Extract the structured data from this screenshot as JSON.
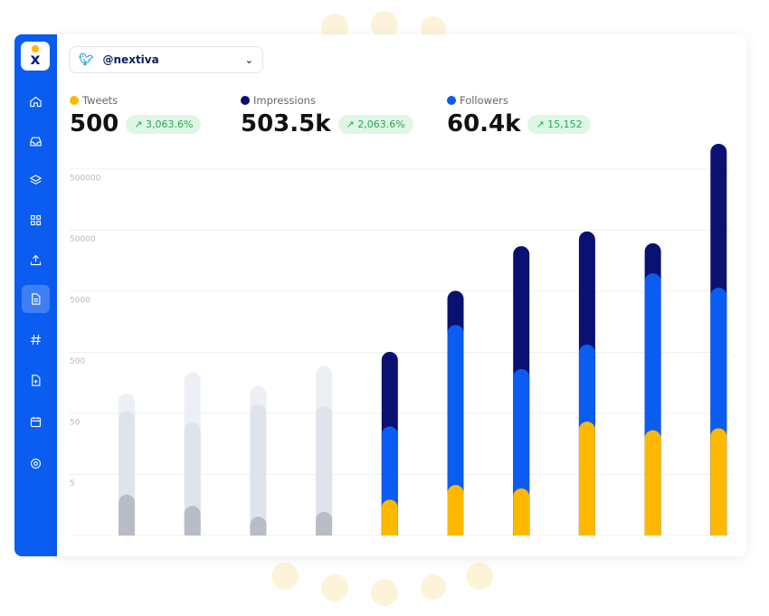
{
  "account": {
    "platform_icon": "twitter-icon",
    "handle": "@nextiva"
  },
  "sidebar": {
    "logo": "x",
    "items": [
      {
        "icon": "home-icon"
      },
      {
        "icon": "inbox-icon"
      },
      {
        "icon": "layers-icon"
      },
      {
        "icon": "grid-icon"
      },
      {
        "icon": "upload-icon"
      },
      {
        "icon": "document-icon",
        "active": true
      },
      {
        "icon": "hashtag-icon"
      },
      {
        "icon": "file-plus-icon"
      },
      {
        "icon": "calendar-icon"
      },
      {
        "icon": "settings-icon"
      }
    ]
  },
  "stats": [
    {
      "label": "Tweets",
      "value": "500",
      "change": "3,063.6%",
      "color": "#ffb800"
    },
    {
      "label": "Impressions",
      "value": "503.5k",
      "change": "2,063.6%",
      "color": "#0a1172"
    },
    {
      "label": "Followers",
      "value": "60.4k",
      "change": "15,152",
      "color": "#0b5cf0"
    }
  ],
  "colors": {
    "accent": "#0b5cf0",
    "tweets": "#ffb800",
    "followers": "#0b5cf0",
    "impressions": "#0a1172",
    "inactive": [
      "#eceff4",
      "#dfe3ea",
      "#b7bcc6"
    ]
  },
  "chart_data": {
    "type": "bar",
    "scale": "log",
    "grid": true,
    "yticks": [
      "5",
      "50",
      "500",
      "5000",
      "50000",
      "500000"
    ],
    "bars": [
      {
        "active": false,
        "values": [
          2.3,
          53,
          104
        ]
      },
      {
        "active": false,
        "values": [
          1.5,
          35,
          230
        ]
      },
      {
        "active": false,
        "values": [
          1.0,
          69,
          138
        ]
      },
      {
        "active": false,
        "values": [
          1.2,
          65,
          290
        ]
      },
      {
        "active": true,
        "tweets": 1.9,
        "followers": 30,
        "impressions": 500
      },
      {
        "active": true,
        "tweets": 3.3,
        "followers": 1380,
        "impressions": 5000
      },
      {
        "active": true,
        "tweets": 2.9,
        "followers": 262,
        "impressions": 27000
      },
      {
        "active": true,
        "tweets": 36,
        "followers": 660,
        "impressions": 47000
      },
      {
        "active": true,
        "tweets": 26,
        "followers": 9700,
        "impressions": 30000
      },
      {
        "active": true,
        "tweets": 28,
        "followers": 5600,
        "impressions": 1280000
      }
    ]
  }
}
